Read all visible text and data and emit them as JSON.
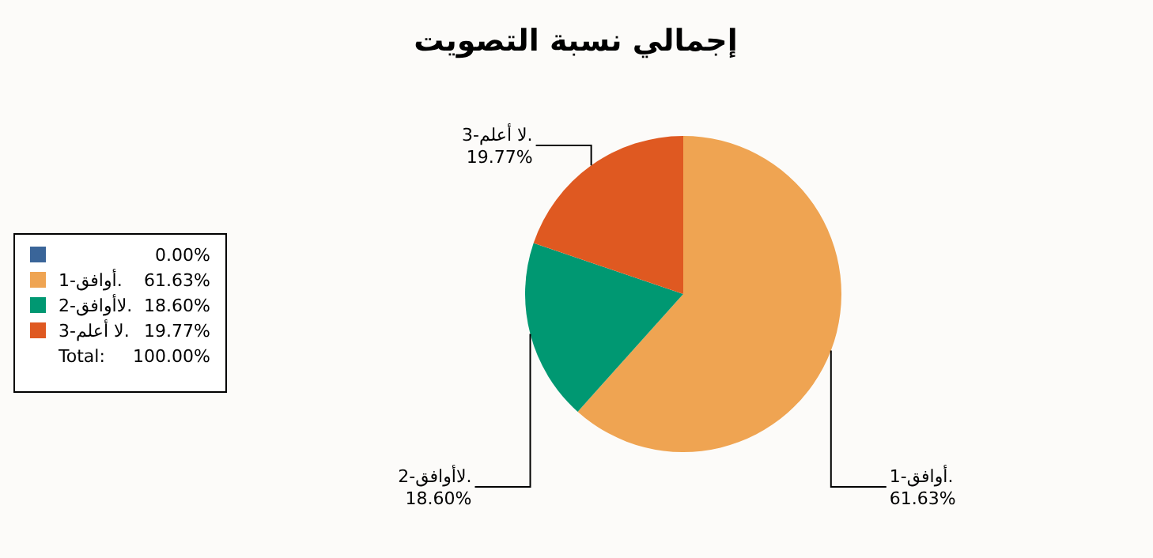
{
  "chart_data": {
    "type": "pie",
    "title": "إجمالي نسبة التصويت",
    "categories": [
      null,
      "1-أوافق.",
      "2-لاأوافق.",
      "3-لا أعلم."
    ],
    "values": [
      0,
      61.63,
      18.6,
      19.77
    ],
    "colors": [
      "#3a6599",
      "#efa452",
      "#009872",
      "#df5921"
    ],
    "value_labels": [
      "0.00%",
      "61.63%",
      "18.60%",
      "19.77%"
    ],
    "legend": "left",
    "annotations": [
      "Total:",
      "100.00%"
    ]
  }
}
